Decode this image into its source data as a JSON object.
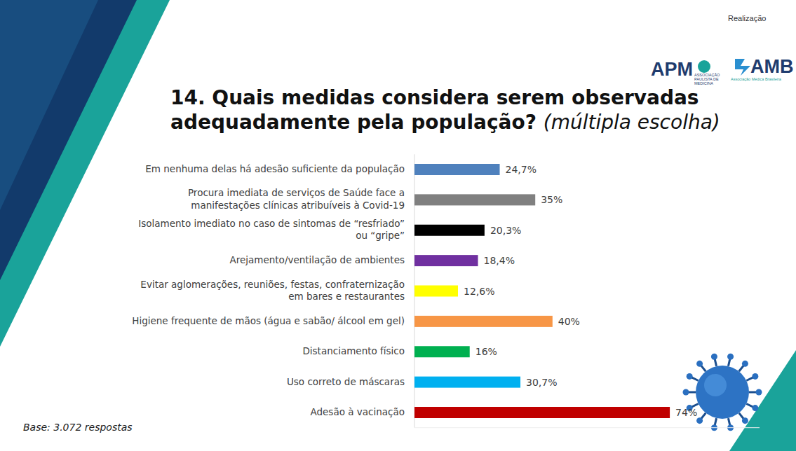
{
  "header": {
    "label": "Realização",
    "logos": [
      {
        "name": "APM",
        "caption": "ASSOCIAÇÃO PAULISTA DE MEDICINA"
      },
      {
        "name": "AMB",
        "caption": "Associação Médica Brasileira"
      }
    ]
  },
  "chart_data": {
    "type": "bar",
    "orientation": "horizontal",
    "title": "14. Quais medidas considera serem observadas adequadamente pela população?",
    "subtitle": "(múltipla escolha)",
    "annotations": [
      "Base: 3.072 respostas"
    ],
    "categories": [
      "Em nenhuma delas há adesão suficiente da população",
      "Procura imediata de serviços de Saúde face a manifestações clínicas atribuíveis à Covid-19",
      "Isolamento imediato no caso de sintomas de “resfriado” ou “gripe”",
      "Arejamento/ventilação de ambientes",
      "Evitar aglomerações, reuniões, festas, confraternização em bares e restaurantes",
      "Higiene frequente de mãos (água e sabão/ álcool em gel)",
      "Distanciamento físico",
      "Uso correto de máscaras",
      "Adesão à vacinação"
    ],
    "values": [
      24.7,
      35,
      20.3,
      18.4,
      12.6,
      40,
      16,
      30.7,
      74
    ],
    "value_labels": [
      "24,7%",
      "35%",
      "20,3%",
      "18,4%",
      "12,6%",
      "40%",
      "16%",
      "30,7%",
      "74%"
    ],
    "colors": [
      "#4f81bd",
      "#808080",
      "#000000",
      "#7030a0",
      "#ffff00",
      "#f79646",
      "#00b050",
      "#00b0f0",
      "#c00000"
    ],
    "xlim": [
      0,
      100
    ],
    "data_labels": true,
    "tick_labels": false,
    "grid": false
  }
}
